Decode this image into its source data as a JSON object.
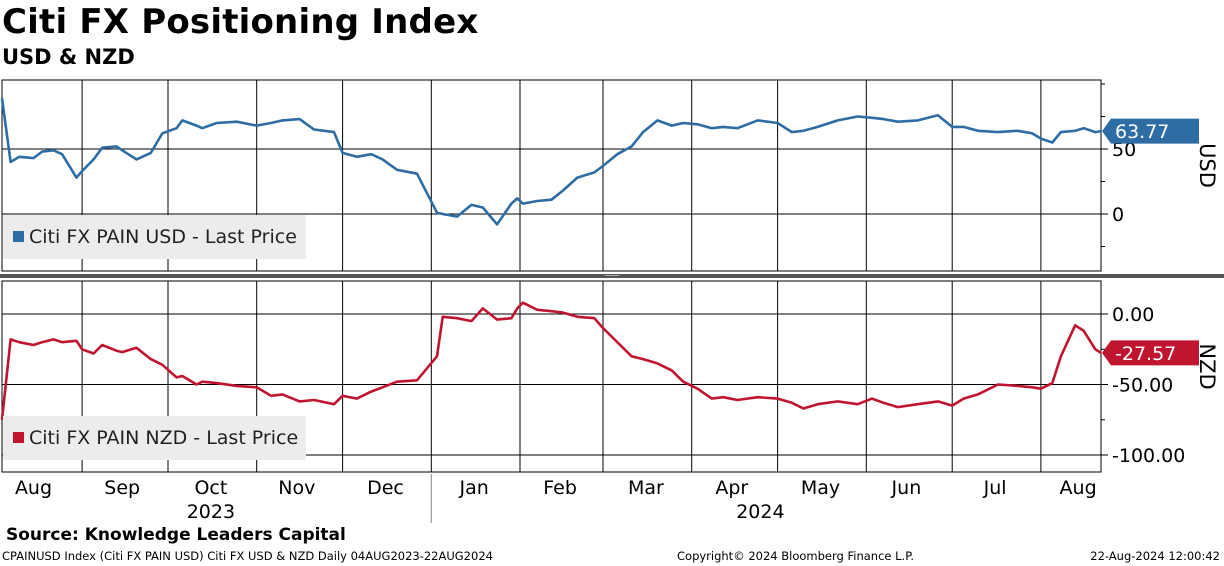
{
  "header": {
    "title": "Citi FX Positioning Index",
    "subtitle": "USD & NZD"
  },
  "footer": {
    "source": "Source: Knowledge Leaders Capital",
    "ticker_line": "CPAINUSD Index (Citi FX PAIN USD) Citi FX USD & NZD  Daily 04AUG2023-22AUG2024",
    "copyright": "Copyright© 2024 Bloomberg Finance L.P.",
    "timestamp": "22-Aug-2024 12:00:42"
  },
  "colors": {
    "usd": "#2e6ca4",
    "nzd": "#c0152f",
    "legend_bg": "#ececec",
    "separator": "#555555",
    "grid": "#000000"
  },
  "chart_data": [
    {
      "type": "line",
      "panel": "top",
      "axis_label": "USD",
      "legend": "Citi FX PAIN USD - Last Price",
      "last_value_label": "63.77",
      "y_ticks": [
        "50",
        "0"
      ],
      "y_tick_values": [
        50,
        0
      ],
      "ylim": [
        -55,
        100
      ],
      "x_dates": [
        "2023-08-04",
        "2023-08-07",
        "2023-08-10",
        "2023-08-15",
        "2023-08-18",
        "2023-08-22",
        "2023-08-25",
        "2023-08-30",
        "2023-09-01",
        "2023-09-05",
        "2023-09-08",
        "2023-09-13",
        "2023-09-15",
        "2023-09-20",
        "2023-09-25",
        "2023-09-29",
        "2023-10-04",
        "2023-10-06",
        "2023-10-11",
        "2023-10-13",
        "2023-10-18",
        "2023-10-25",
        "2023-11-01",
        "2023-11-06",
        "2023-11-10",
        "2023-11-16",
        "2023-11-21",
        "2023-11-28",
        "2023-12-01",
        "2023-12-06",
        "2023-12-11",
        "2023-12-15",
        "2023-12-20",
        "2023-12-27",
        "2024-01-03",
        "2024-01-05",
        "2024-01-10",
        "2024-01-15",
        "2024-01-19",
        "2024-01-24",
        "2024-01-29",
        "2024-01-31",
        "2024-02-02",
        "2024-02-07",
        "2024-02-12",
        "2024-02-16",
        "2024-02-21",
        "2024-02-27",
        "2024-03-01",
        "2024-03-06",
        "2024-03-11",
        "2024-03-15",
        "2024-03-20",
        "2024-03-25",
        "2024-03-29",
        "2024-04-03",
        "2024-04-08",
        "2024-04-12",
        "2024-04-17",
        "2024-04-24",
        "2024-05-01",
        "2024-05-06",
        "2024-05-10",
        "2024-05-15",
        "2024-05-22",
        "2024-05-29",
        "2024-06-03",
        "2024-06-07",
        "2024-06-12",
        "2024-06-19",
        "2024-06-26",
        "2024-07-01",
        "2024-07-05",
        "2024-07-10",
        "2024-07-17",
        "2024-07-24",
        "2024-07-29",
        "2024-08-01",
        "2024-08-05",
        "2024-08-08",
        "2024-08-13",
        "2024-08-16",
        "2024-08-20",
        "2024-08-22"
      ],
      "values": [
        89,
        40,
        44,
        43,
        48,
        49,
        46,
        28,
        33,
        42,
        51,
        52,
        49,
        42,
        47,
        62,
        66,
        72,
        68,
        66,
        70,
        71,
        68,
        70,
        72,
        73,
        65,
        63,
        47,
        44,
        46,
        42,
        34,
        31,
        1,
        0,
        -2,
        7,
        5,
        -8,
        8,
        12,
        8,
        10,
        11,
        18,
        28,
        32,
        37,
        46,
        52,
        63,
        72,
        68,
        70,
        69,
        66,
        67,
        66,
        72,
        70,
        63,
        64,
        67,
        72,
        75,
        74,
        73,
        71,
        72,
        76,
        67,
        67,
        64,
        63,
        64,
        62,
        58,
        55,
        63,
        64,
        66,
        63,
        63.77
      ]
    },
    {
      "type": "line",
      "panel": "bottom",
      "axis_label": "NZD",
      "legend": "Citi FX PAIN NZD - Last Price",
      "last_value_label": "-27.57",
      "y_ticks": [
        "0.00",
        "-50.00",
        "-100.00"
      ],
      "y_tick_values": [
        0,
        -50,
        -100
      ],
      "ylim": [
        -115,
        15
      ],
      "x_dates": [
        "2023-08-04",
        "2023-08-07",
        "2023-08-10",
        "2023-08-15",
        "2023-08-18",
        "2023-08-22",
        "2023-08-25",
        "2023-08-30",
        "2023-09-01",
        "2023-09-05",
        "2023-09-08",
        "2023-09-13",
        "2023-09-15",
        "2023-09-20",
        "2023-09-25",
        "2023-09-29",
        "2023-10-04",
        "2023-10-06",
        "2023-10-11",
        "2023-10-13",
        "2023-10-18",
        "2023-10-25",
        "2023-11-01",
        "2023-11-06",
        "2023-11-10",
        "2023-11-16",
        "2023-11-21",
        "2023-11-28",
        "2023-12-01",
        "2023-12-06",
        "2023-12-11",
        "2023-12-15",
        "2023-12-20",
        "2023-12-27",
        "2024-01-03",
        "2024-01-05",
        "2024-01-10",
        "2024-01-15",
        "2024-01-19",
        "2024-01-24",
        "2024-01-29",
        "2024-01-31",
        "2024-02-02",
        "2024-02-07",
        "2024-02-12",
        "2024-02-16",
        "2024-02-21",
        "2024-02-27",
        "2024-03-01",
        "2024-03-06",
        "2024-03-11",
        "2024-03-15",
        "2024-03-20",
        "2024-03-25",
        "2024-03-29",
        "2024-04-03",
        "2024-04-08",
        "2024-04-12",
        "2024-04-17",
        "2024-04-24",
        "2024-05-01",
        "2024-05-06",
        "2024-05-10",
        "2024-05-15",
        "2024-05-22",
        "2024-05-29",
        "2024-06-03",
        "2024-06-07",
        "2024-06-12",
        "2024-06-19",
        "2024-06-26",
        "2024-07-01",
        "2024-07-05",
        "2024-07-10",
        "2024-07-17",
        "2024-07-24",
        "2024-07-29",
        "2024-08-01",
        "2024-08-05",
        "2024-08-08",
        "2024-08-13",
        "2024-08-16",
        "2024-08-20",
        "2024-08-22"
      ],
      "values": [
        -75,
        -18,
        -20,
        -22,
        -20,
        -18,
        -20,
        -19,
        -25,
        -28,
        -22,
        -26,
        -27,
        -24,
        -32,
        -36,
        -45,
        -44,
        -50,
        -48,
        -49,
        -51,
        -52,
        -58,
        -57,
        -62,
        -61,
        -64,
        -58,
        -60,
        -55,
        -52,
        -48,
        -47,
        -30,
        -2,
        -3,
        -5,
        4,
        -4,
        -3,
        4,
        8,
        3,
        2,
        1,
        -2,
        -3,
        -10,
        -20,
        -30,
        -32,
        -35,
        -40,
        -48,
        -53,
        -60,
        -59,
        -61,
        -59,
        -60,
        -63,
        -67,
        -64,
        -62,
        -64,
        -60,
        -63,
        -66,
        -64,
        -62,
        -65,
        -60,
        -57,
        -50,
        -51,
        -52,
        -53,
        -49,
        -30,
        -8,
        -12,
        -25,
        -27.57
      ]
    }
  ],
  "x_axis": {
    "months": [
      {
        "label": "Aug",
        "date": "2023-08-15"
      },
      {
        "label": "Sep",
        "date": "2023-09-15"
      },
      {
        "label": "Oct",
        "date": "2023-10-16"
      },
      {
        "label": "Nov",
        "date": "2023-11-15"
      },
      {
        "label": "Dec",
        "date": "2023-12-16"
      },
      {
        "label": "Jan",
        "date": "2024-01-16"
      },
      {
        "label": "Feb",
        "date": "2024-02-15"
      },
      {
        "label": "Mar",
        "date": "2024-03-16"
      },
      {
        "label": "Apr",
        "date": "2024-04-15"
      },
      {
        "label": "May",
        "date": "2024-05-16"
      },
      {
        "label": "Jun",
        "date": "2024-06-15"
      },
      {
        "label": "Jul",
        "date": "2024-07-16"
      },
      {
        "label": "Aug",
        "date": "2024-08-14"
      }
    ],
    "gridlines": [
      "2023-09-01",
      "2023-10-01",
      "2023-11-01",
      "2023-12-01",
      "2024-01-01",
      "2024-02-01",
      "2024-03-01",
      "2024-04-01",
      "2024-05-01",
      "2024-06-01",
      "2024-07-01",
      "2024-08-01"
    ],
    "years": [
      {
        "label": "2023",
        "date": "2023-10-16"
      },
      {
        "label": "2024",
        "date": "2024-04-25"
      }
    ],
    "year_divider": "2024-01-01"
  }
}
